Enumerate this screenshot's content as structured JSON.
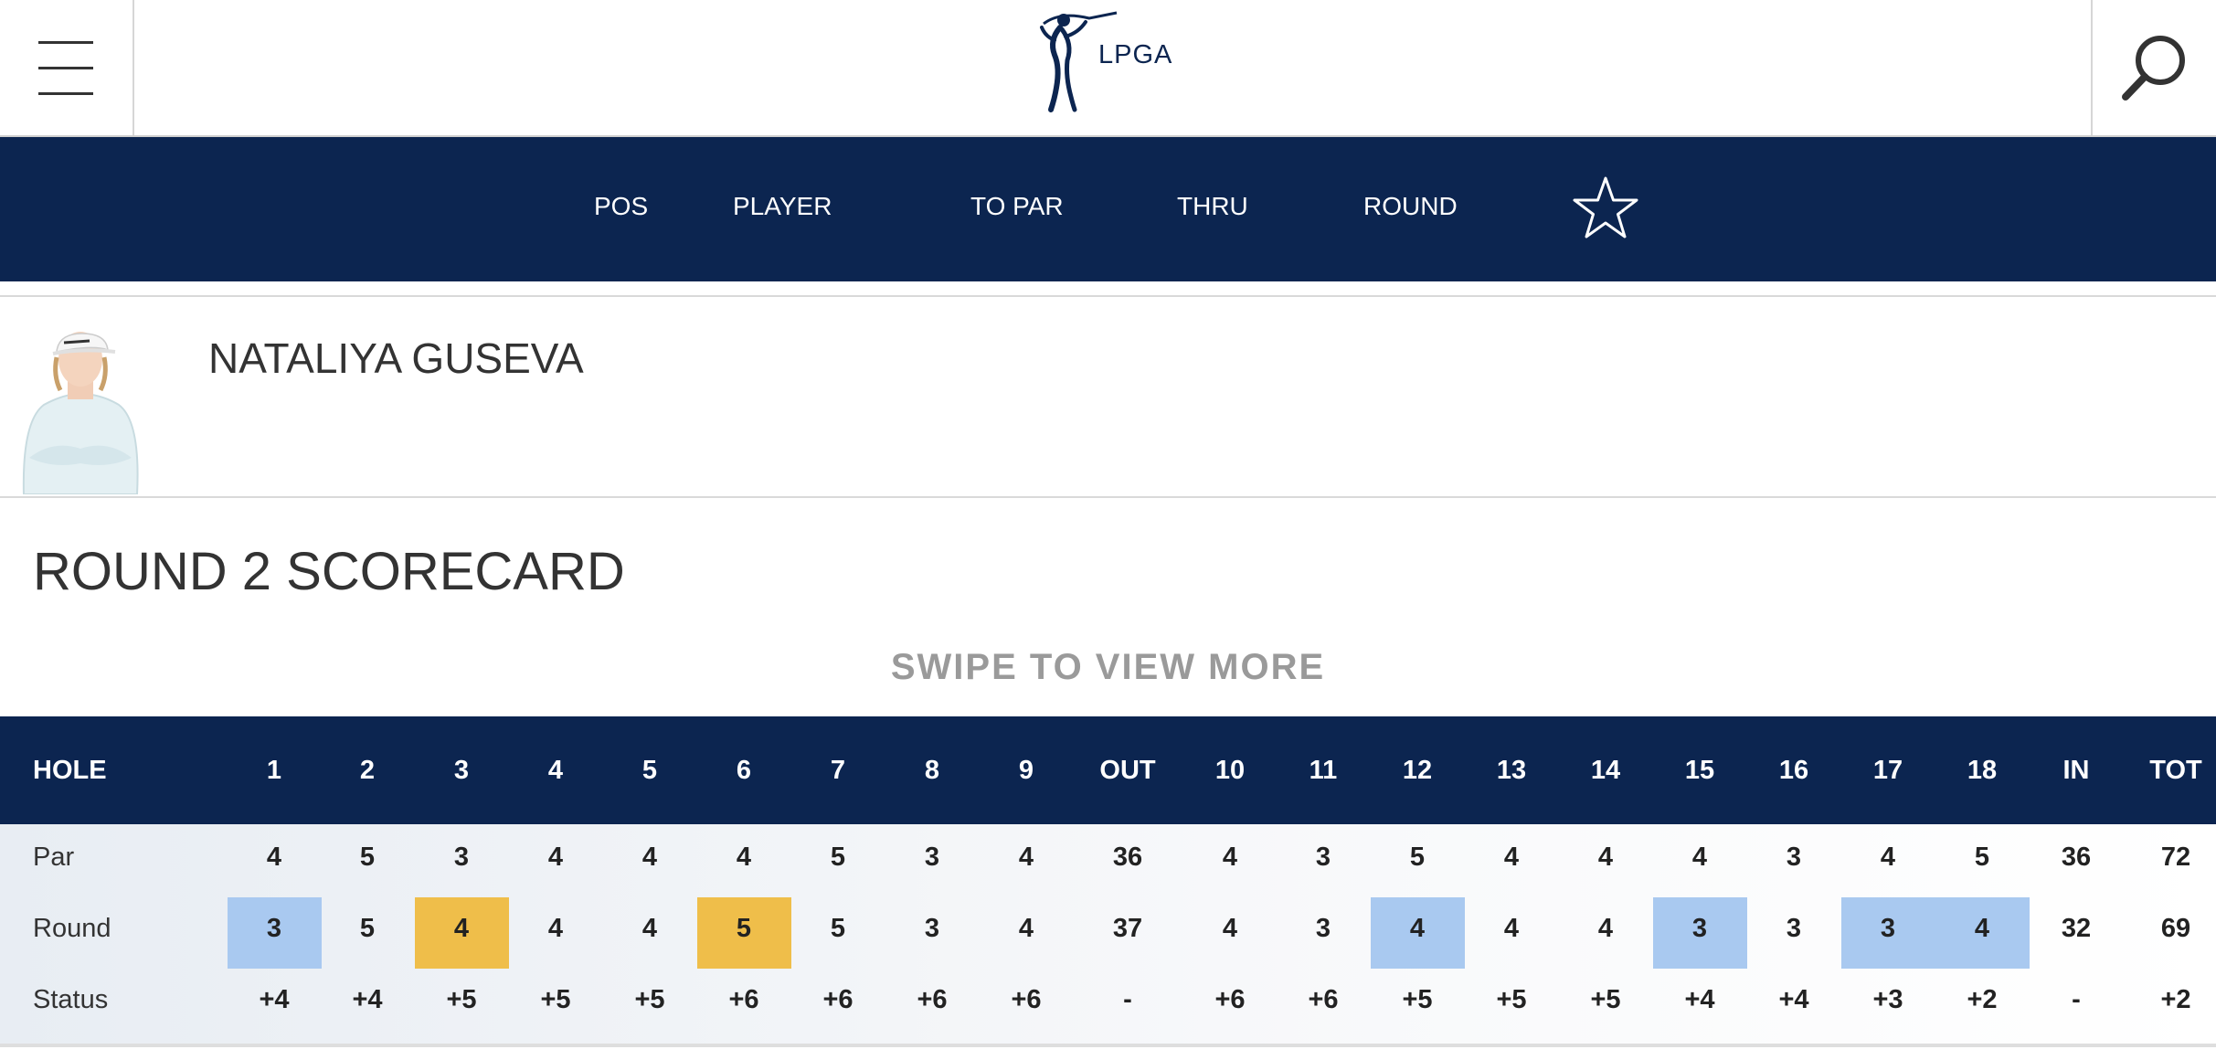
{
  "header": {
    "logo_text": "LPGA",
    "menu_icon": "hamburger-icon",
    "search_icon": "search-icon"
  },
  "leaderboard_header": {
    "columns": [
      "POS",
      "PLAYER",
      "TO PAR",
      "THRU",
      "ROUND"
    ],
    "favorite_icon": "star-outline-icon"
  },
  "player": {
    "name": "NATALIYA GUSEVA"
  },
  "scorecard": {
    "title": "ROUND 2 SCORECARD",
    "swipe_hint": "SWIPE TO VIEW MORE",
    "header_label": "HOLE",
    "columns": [
      "1",
      "2",
      "3",
      "4",
      "5",
      "6",
      "7",
      "8",
      "9",
      "OUT",
      "10",
      "11",
      "12",
      "13",
      "14",
      "15",
      "16",
      "17",
      "18",
      "IN",
      "TOT"
    ],
    "rows": [
      {
        "label": "Par",
        "values": [
          "4",
          "5",
          "3",
          "4",
          "4",
          "4",
          "5",
          "3",
          "4",
          "36",
          "4",
          "3",
          "5",
          "4",
          "4",
          "4",
          "3",
          "4",
          "5",
          "36",
          "72"
        ]
      },
      {
        "label": "Round",
        "values": [
          "3",
          "5",
          "4",
          "4",
          "4",
          "5",
          "5",
          "3",
          "4",
          "37",
          "4",
          "3",
          "4",
          "4",
          "4",
          "3",
          "3",
          "3",
          "4",
          "32",
          "69"
        ]
      },
      {
        "label": "Status",
        "values": [
          "+4",
          "+4",
          "+5",
          "+5",
          "+5",
          "+6",
          "+6",
          "+6",
          "+6",
          "-",
          "+6",
          "+6",
          "+5",
          "+5",
          "+5",
          "+4",
          "+4",
          "+3",
          "+2",
          "-",
          "+2"
        ]
      }
    ],
    "highlight_colors": {
      "birdie": "#a9c9f0",
      "bogey": "#efbe4a"
    },
    "round_highlights": [
      {
        "column": "1",
        "type": "birdie"
      },
      {
        "column": "3",
        "type": "bogey"
      },
      {
        "column": "6",
        "type": "bogey"
      },
      {
        "column": "12",
        "type": "birdie"
      },
      {
        "column": "15",
        "type": "birdie"
      },
      {
        "column": "17",
        "type": "birdie"
      },
      {
        "column": "18",
        "type": "birdie"
      }
    ]
  }
}
